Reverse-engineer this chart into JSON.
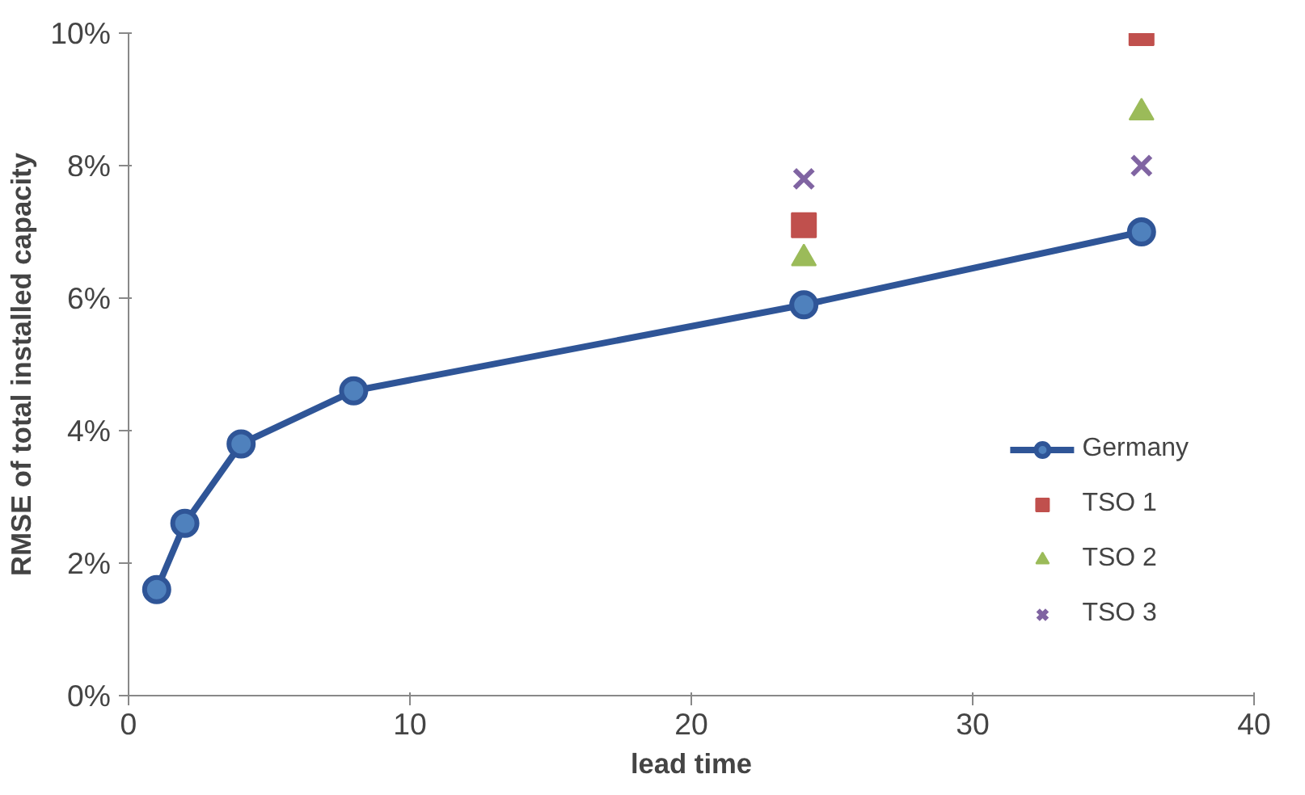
{
  "chart_data": {
    "type": "line",
    "xlabel": "lead time",
    "ylabel": "RMSE of total installed capacity",
    "xlim": [
      0,
      40
    ],
    "xticks": [
      0,
      10,
      20,
      30,
      40
    ],
    "ylim": [
      0,
      10
    ],
    "yticks": [
      {
        "value": 0,
        "label": "0%"
      },
      {
        "value": 2,
        "label": "2%"
      },
      {
        "value": 4,
        "label": "4%"
      },
      {
        "value": 6,
        "label": "6%"
      },
      {
        "value": 8,
        "label": "8%"
      },
      {
        "value": 10,
        "label": "10%"
      }
    ],
    "grid": false,
    "legend": "bottom right",
    "series": [
      {
        "name": "Germany",
        "marker": "circle",
        "color": "#2f5597",
        "x": [
          1,
          2,
          4,
          8,
          24,
          36
        ],
        "values": [
          1.6,
          2.6,
          3.8,
          4.6,
          5.9,
          7.0
        ]
      },
      {
        "name": "TSO 1",
        "type": "scatter",
        "marker": "square",
        "color": "#c0504d",
        "x": [
          24,
          36
        ],
        "values": [
          7.1,
          10.0
        ]
      },
      {
        "name": "TSO 2",
        "type": "scatter",
        "marker": "triangle",
        "color": "#9bbb59",
        "x": [
          24,
          36
        ],
        "values": [
          6.6,
          8.8
        ]
      },
      {
        "name": "TSO 3",
        "type": "scatter",
        "marker": "cross",
        "color": "#8064a2",
        "x": [
          24,
          36
        ],
        "values": [
          7.8,
          8.0
        ]
      }
    ]
  }
}
